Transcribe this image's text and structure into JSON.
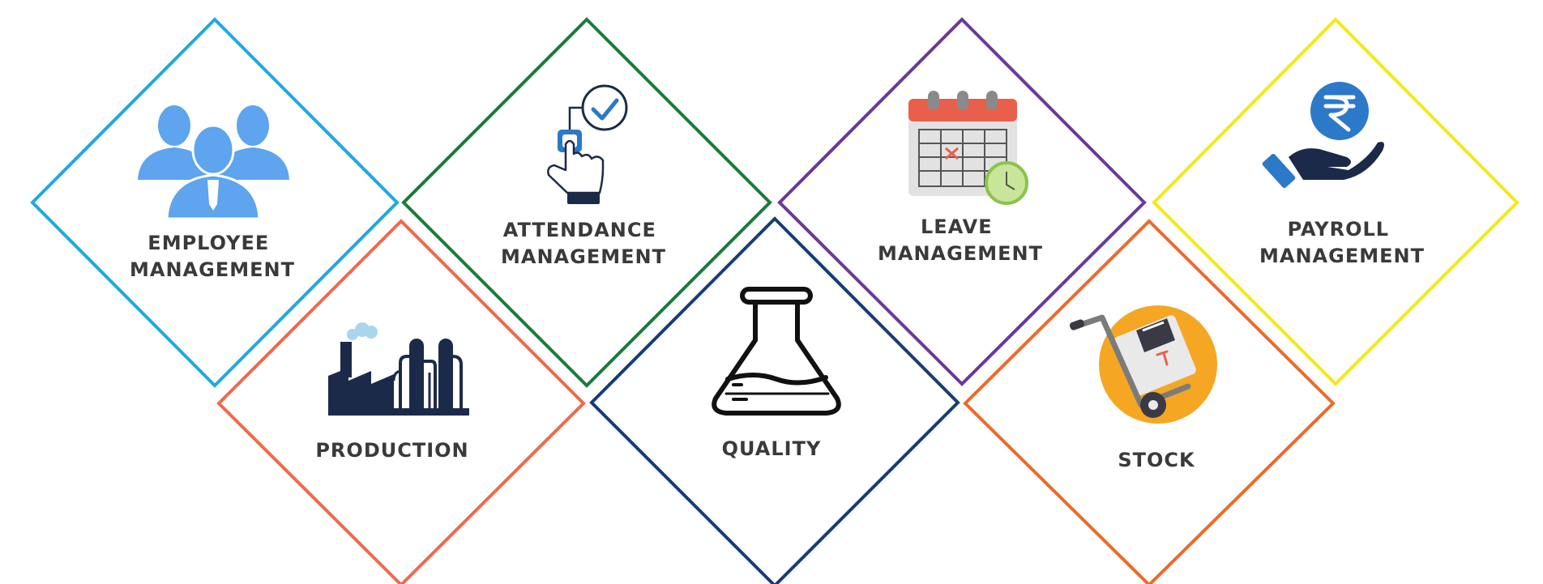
{
  "modules": [
    {
      "id": "employee",
      "lines": [
        "EMPLOYEE",
        "MANAGEMENT"
      ],
      "border_color": "#1fa9e1",
      "icon": "people-group-icon"
    },
    {
      "id": "attendance",
      "lines": [
        "ATTENDANCE",
        "MANAGEMENT"
      ],
      "border_color": "#1e7a3c",
      "icon": "fingerprint-touch-icon"
    },
    {
      "id": "leave",
      "lines": [
        "LEAVE",
        "MANAGEMENT"
      ],
      "border_color": "#6a3a97",
      "icon": "calendar-icon"
    },
    {
      "id": "payroll",
      "lines": [
        "PAYROLL",
        "MANAGEMENT"
      ],
      "border_color": "#f5e81a",
      "icon": "rupee-hand-icon"
    },
    {
      "id": "production",
      "lines": [
        "PRODUCTION"
      ],
      "border_color": "#ee6a4e",
      "icon": "factory-icon"
    },
    {
      "id": "quality",
      "lines": [
        "QUALITY"
      ],
      "border_color": "#163d73",
      "icon": "flask-icon"
    },
    {
      "id": "stock",
      "lines": [
        "STOCK"
      ],
      "border_color": "#ec6a2a",
      "icon": "hand-truck-icon"
    }
  ],
  "colors": {
    "label": "#3a3a3a",
    "people_blue": "#5ea4ee",
    "dark_navy": "#1c2a4a",
    "calendar_red": "#e8604c",
    "rupee_blue": "#2c79c9",
    "stock_orange": "#f5a623"
  }
}
